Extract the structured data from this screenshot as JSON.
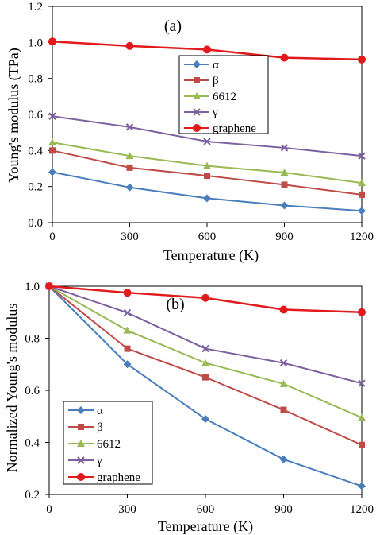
{
  "colors": {
    "alpha": "#4a7ebb",
    "beta": "#be4b48",
    "6612": "#98b954",
    "gamma": "#7d60a0",
    "graphene": "#e31a1c"
  },
  "chart_data": [
    {
      "type": "line",
      "panel_label": "(a)",
      "xlabel": "Temperature (K)",
      "ylabel": "Young's modulus (TPa)",
      "xlim": [
        0,
        1200
      ],
      "ylim": [
        0,
        1.2
      ],
      "x_ticks": [
        "0",
        "300",
        "600",
        "900",
        "1200"
      ],
      "y_ticks": [
        "0.0",
        "0.2",
        "0.4",
        "0.6",
        "0.8",
        "1.0",
        "1.2"
      ],
      "x": [
        0,
        300,
        600,
        900,
        1200
      ],
      "legend_position": "center-right",
      "series": [
        {
          "name": "α",
          "key": "alpha",
          "marker": "diamond",
          "values": [
            0.28,
            0.195,
            0.135,
            0.095,
            0.065
          ]
        },
        {
          "name": "β",
          "key": "beta",
          "marker": "square",
          "values": [
            0.4,
            0.305,
            0.26,
            0.21,
            0.155
          ]
        },
        {
          "name": "6612",
          "key": "6612",
          "marker": "triangle",
          "values": [
            0.445,
            0.37,
            0.315,
            0.278,
            0.22
          ]
        },
        {
          "name": "γ",
          "key": "gamma",
          "marker": "x",
          "values": [
            0.59,
            0.53,
            0.45,
            0.415,
            0.37
          ]
        },
        {
          "name": "graphene",
          "key": "graphene",
          "marker": "circle",
          "values": [
            1.005,
            0.98,
            0.96,
            0.915,
            0.905
          ]
        }
      ]
    },
    {
      "type": "line",
      "panel_label": "(b)",
      "xlabel": "Temperature (K)",
      "ylabel": "Normalized Young's modulus",
      "xlim": [
        0,
        1200
      ],
      "ylim": [
        0.2,
        1.0
      ],
      "x_ticks": [
        "0",
        "300",
        "600",
        "900",
        "1200"
      ],
      "y_ticks": [
        "0.2",
        "0.4",
        "0.6",
        "0.8",
        "1.0"
      ],
      "x": [
        0,
        300,
        600,
        900,
        1200
      ],
      "legend_position": "bottom-left",
      "series": [
        {
          "name": "α",
          "key": "alpha",
          "marker": "diamond",
          "values": [
            1.0,
            0.7,
            0.49,
            0.335,
            0.232
          ]
        },
        {
          "name": "β",
          "key": "beta",
          "marker": "square",
          "values": [
            1.0,
            0.76,
            0.65,
            0.525,
            0.39
          ]
        },
        {
          "name": "6612",
          "key": "6612",
          "marker": "triangle",
          "values": [
            1.0,
            0.83,
            0.705,
            0.625,
            0.495
          ]
        },
        {
          "name": "γ",
          "key": "gamma",
          "marker": "x",
          "values": [
            1.0,
            0.898,
            0.76,
            0.705,
            0.627
          ]
        },
        {
          "name": "graphene",
          "key": "graphene",
          "marker": "circle",
          "values": [
            1.0,
            0.975,
            0.955,
            0.91,
            0.9
          ]
        }
      ]
    }
  ]
}
